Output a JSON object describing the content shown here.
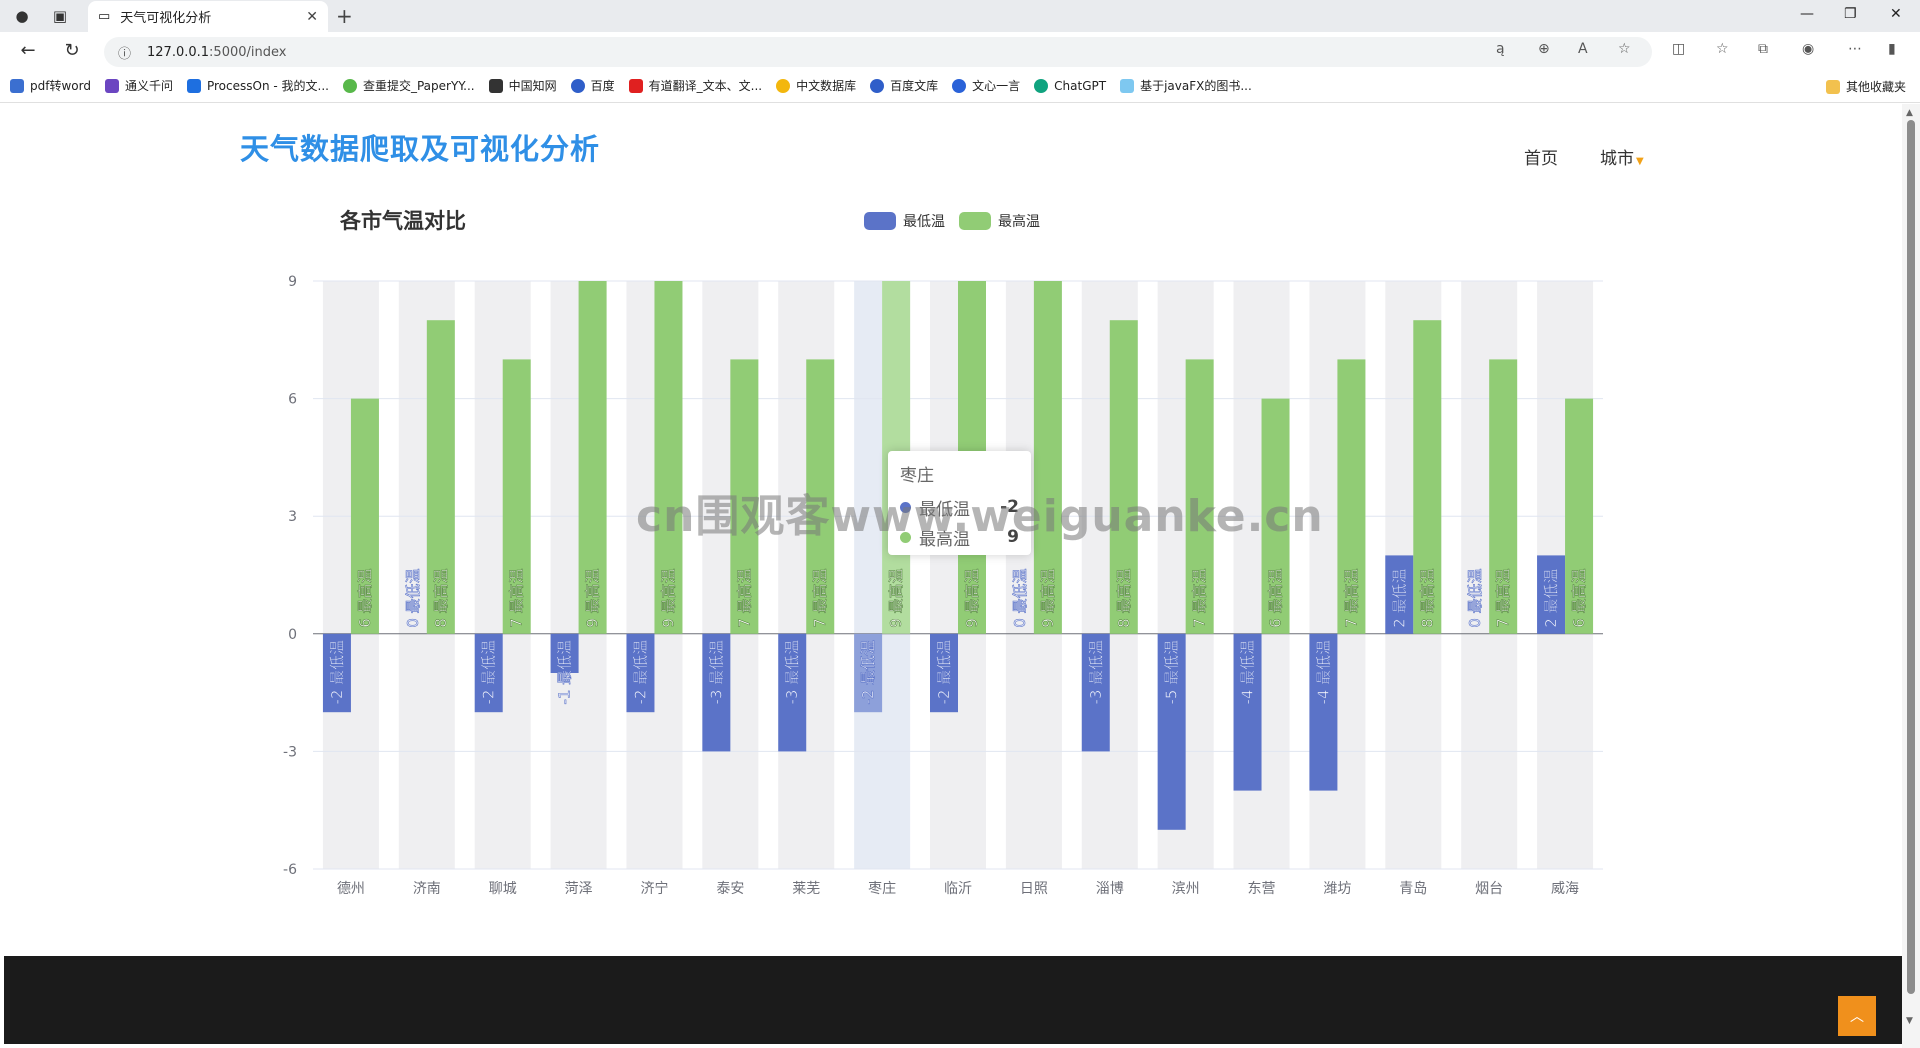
{
  "browser": {
    "tab_title": "天气可视化分析",
    "url_host": "127.0.0.1",
    "url_path": ":5000/index",
    "bookmarks": [
      "pdf转word",
      "通义千问",
      "ProcessOn - 我的文...",
      "查重提交_PaperYY...",
      "中国知网",
      "百度",
      "有道翻译_文本、文...",
      "中文数据库",
      "百度文库",
      "文心一言",
      "ChatGPT",
      "基于javaFX的图书..."
    ],
    "other_bookmarks": "其他收藏夹"
  },
  "site": {
    "title": "天气数据爬取及可视化分析",
    "nav_home": "首页",
    "nav_city": "城市"
  },
  "watermark": "cn围观客www.weiguanke.cn",
  "tooltip": {
    "title": "枣庄",
    "rows": [
      {
        "name": "最低温",
        "value": "-2"
      },
      {
        "name": "最高温",
        "value": "9"
      }
    ]
  },
  "colors": {
    "min": "#5b73c8",
    "max": "#91cc75",
    "accent": "#2f8fe6",
    "footer": "#1b1b1b",
    "totop": "#f0901c"
  },
  "chart_data": {
    "type": "bar",
    "title": "各市气温对比",
    "categories": [
      "德州",
      "济南",
      "聊城",
      "菏泽",
      "济宁",
      "泰安",
      "莱芜",
      "枣庄",
      "临沂",
      "日照",
      "淄博",
      "滨州",
      "东营",
      "潍坊",
      "青岛",
      "烟台",
      "威海"
    ],
    "series": [
      {
        "name": "最低温",
        "values": [
          -2,
          0,
          -2,
          -1,
          -2,
          -3,
          -3,
          -2,
          -2,
          0,
          -3,
          -5,
          -4,
          -4,
          2,
          0,
          2
        ]
      },
      {
        "name": "最高温",
        "values": [
          6,
          8,
          7,
          9,
          9,
          7,
          7,
          9,
          9,
          9,
          8,
          7,
          6,
          7,
          8,
          7,
          6
        ]
      }
    ],
    "ylim": [
      -6,
      9
    ],
    "yticks": [
      -6,
      -3,
      0,
      3,
      6,
      9
    ],
    "legend": "top-center",
    "highlighted_category": "枣庄",
    "grid": true
  }
}
